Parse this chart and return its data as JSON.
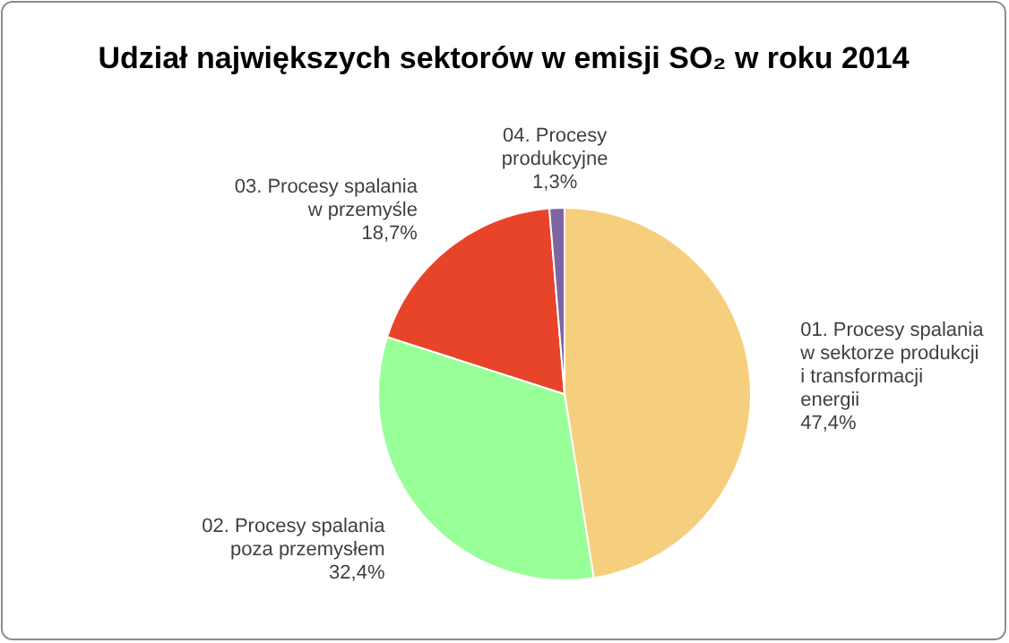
{
  "chart_data": {
    "type": "pie",
    "title": "Udział największych sektorów w emisji SO₂ w roku 2014",
    "categories": [
      "01. Procesy spalania w sektorze produkcji i transformacji energii",
      "02. Procesy spalania poza przemysłem",
      "03. Procesy spalania w przemyśle",
      "04. Procesy produkcyjne"
    ],
    "values": [
      47.4,
      32.4,
      18.7,
      1.3
    ],
    "colors": [
      "#f6cf7e",
      "#99ff99",
      "#e8442a",
      "#7f64a2"
    ],
    "value_labels": [
      "47,4%",
      "32,4%",
      "18,7%",
      "1,3%"
    ]
  }
}
